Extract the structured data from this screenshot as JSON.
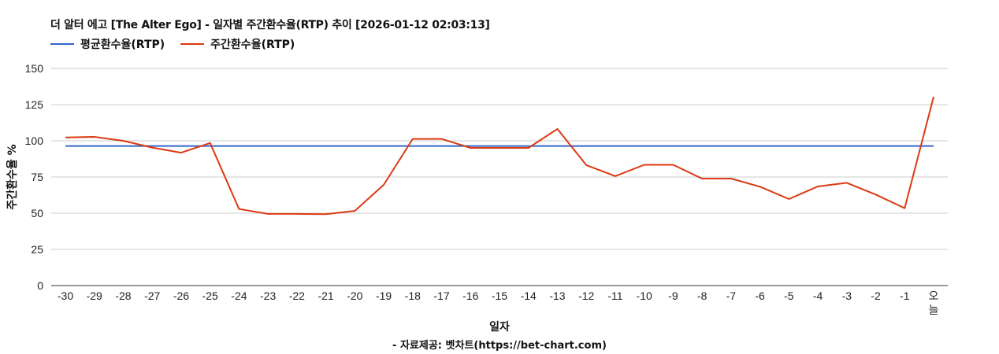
{
  "title": "더 알터 에고 [The Alter Ego] - 일자별 주간환수율(RTP) 추이 [2026-01-12 02:03:13]",
  "legend": [
    {
      "label": "평균환수율(RTP)",
      "color": "#3366cc"
    },
    {
      "label": "주간환수율(RTP)",
      "color": "#dc3912"
    }
  ],
  "source": "- 자료제공: 벳차트(https://bet-chart.com)",
  "chart_data": {
    "type": "line",
    "title": "더 알터 에고 [The Alter Ego] - 일자별 주간환수율(RTP) 추이 [2026-01-12 02:03:13]",
    "xlabel": "일자",
    "ylabel": "주간환수율 %",
    "ylim": [
      0,
      150
    ],
    "yticks": [
      0,
      25,
      50,
      75,
      100,
      125,
      150
    ],
    "grid": true,
    "legend_position": "top-left",
    "categories": [
      "-30",
      "-29",
      "-28",
      "-27",
      "-26",
      "-25",
      "-24",
      "-23",
      "-22",
      "-21",
      "-20",
      "-19",
      "-18",
      "-17",
      "-16",
      "-15",
      "-14",
      "-13",
      "-12",
      "-11",
      "-10",
      "-9",
      "-8",
      "-7",
      "-6",
      "-5",
      "-4",
      "-3",
      "-2",
      "-1",
      "오늘"
    ],
    "series": [
      {
        "name": "평균환수율(RTP)",
        "color": "#3366cc",
        "values": [
          96.4,
          96.4,
          96.4,
          96.4,
          96.4,
          96.4,
          96.4,
          96.4,
          96.4,
          96.4,
          96.4,
          96.4,
          96.4,
          96.4,
          96.4,
          96.4,
          96.4,
          96.4,
          96.4,
          96.4,
          96.4,
          96.4,
          96.4,
          96.4,
          96.4,
          96.4,
          96.4,
          96.4,
          96.4,
          96.4,
          96.4
        ]
      },
      {
        "name": "주간환수율(RTP)",
        "color": "#dc3912",
        "values": [
          102.3,
          102.7,
          100.0,
          95.3,
          91.8,
          98.5,
          52.9,
          49.5,
          49.5,
          49.3,
          51.6,
          69.6,
          101.3,
          101.3,
          95.1,
          95.1,
          95.1,
          108.2,
          83.2,
          75.6,
          83.4,
          83.4,
          73.9,
          73.9,
          68.3,
          59.8,
          68.5,
          71.0,
          62.9,
          53.4,
          130.4
        ]
      }
    ]
  }
}
